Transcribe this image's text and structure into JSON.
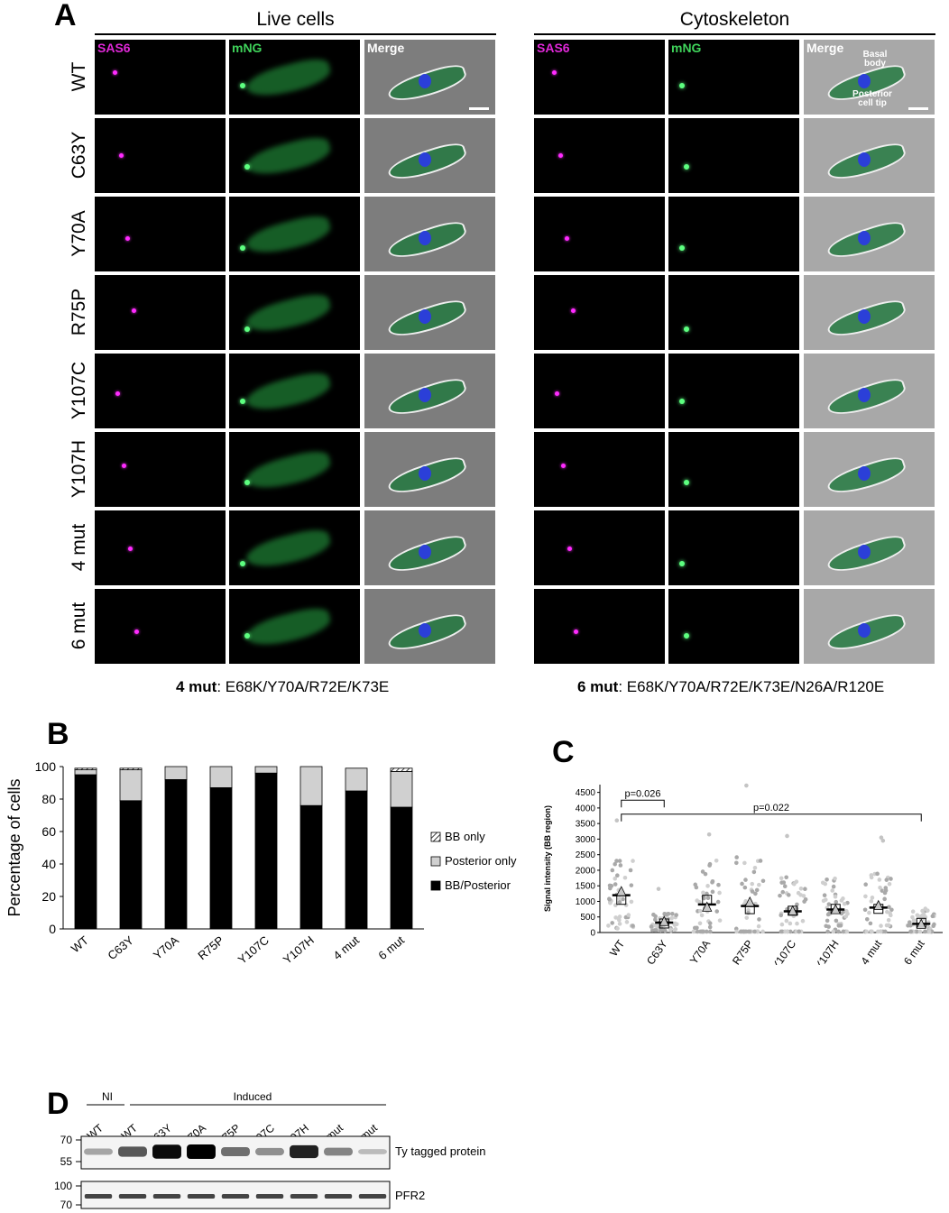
{
  "panels": {
    "A": "A",
    "B": "B",
    "C": "C",
    "D": "D"
  },
  "panel_a": {
    "live_title": "Live cells",
    "cyto_title": "Cytoskeleton",
    "channels": [
      "SAS6",
      "mNG",
      "Merge"
    ],
    "rows": [
      "WT",
      "C63Y",
      "Y70A",
      "R75P",
      "Y107C",
      "Y107H",
      "4 mut",
      "6 mut"
    ],
    "annotations": {
      "basal_body": "Basal body",
      "posterior_tip": "Posterior cell tip"
    },
    "caption_left_bold": "4 mut",
    "caption_left_text": ": E68K/Y70A/R72E/K73E",
    "caption_right_bold": "6 mut",
    "caption_right_text": ": E68K/Y70A/R72E/K73E/N26A/R120E"
  },
  "chart_data": [
    {
      "panel": "B",
      "type": "bar",
      "stacked": true,
      "categories": [
        "WT",
        "C63Y",
        "Y70A",
        "R75P",
        "Y107C",
        "Y107H",
        "4 mut",
        "6 mut"
      ],
      "series": [
        {
          "name": "BB/Posterior",
          "values": [
            95,
            79,
            92,
            87,
            96,
            76,
            85,
            75
          ],
          "color": "#000000"
        },
        {
          "name": "Posterior only",
          "values": [
            3,
            19,
            8,
            13,
            4,
            24,
            14,
            22
          ],
          "color": "#d0d0d0"
        },
        {
          "name": "BB only",
          "values": [
            1,
            1,
            0,
            0,
            0,
            0,
            0,
            2
          ],
          "color": "hatched"
        }
      ],
      "legend_order": [
        "BB only",
        "Posterior only",
        "BB/Posterior"
      ],
      "ylabel": "Percentage of cells",
      "ylim": [
        0,
        100
      ],
      "yticks": [
        0,
        20,
        40,
        60,
        80,
        100
      ],
      "legend_position": "right"
    },
    {
      "panel": "C",
      "type": "scatter",
      "categories": [
        "WT",
        "C63Y",
        "Y70A",
        "R75P",
        "Y107C",
        "Y107H",
        "4 mut",
        "6 mut"
      ],
      "ylabel": "Signal intensity (BB region)",
      "ylim": [
        0,
        4750
      ],
      "yticks": [
        0,
        500,
        1000,
        1500,
        2000,
        2500,
        3000,
        3500,
        4000,
        4500
      ],
      "means": [
        1200,
        320,
        900,
        850,
        680,
        740,
        800,
        280
      ],
      "replicate_square": [
        1050,
        290,
        1050,
        750,
        700,
        760,
        760,
        310
      ],
      "replicate_triangle": [
        1300,
        340,
        800,
        960,
        680,
        720,
        850,
        250
      ],
      "spread_max": [
        2300,
        600,
        2500,
        2750,
        2000,
        1800,
        2000,
        900
      ],
      "outliers": [
        {
          "category": "WT",
          "value": 3600
        },
        {
          "category": "Y70A",
          "value": 3150
        },
        {
          "category": "R75P",
          "value": 4720
        },
        {
          "category": "Y107C",
          "value": 3100
        },
        {
          "category": "4 mut",
          "value": 3050
        },
        {
          "category": "4 mut",
          "value": 2950
        },
        {
          "category": "C63Y",
          "value": 1400
        }
      ],
      "comparisons": [
        {
          "from": "WT",
          "to": "C63Y",
          "label": "p=0.026",
          "y": 4250
        },
        {
          "from": "WT",
          "to": "6 mut",
          "label": "p=0.022",
          "y": 3800
        }
      ]
    }
  ],
  "panel_d": {
    "group_ni": "NI",
    "group_induced": "Induced",
    "lanes": [
      "WT",
      "WT",
      "C63Y",
      "Y70A",
      "R75P",
      "Y107C",
      "Y107H",
      "4 mut",
      "6 mut"
    ],
    "band_intensity_ty": [
      0.25,
      0.6,
      0.95,
      1.0,
      0.5,
      0.35,
      0.85,
      0.4,
      0.15
    ],
    "band_intensity_pfr2": [
      0.75,
      0.75,
      0.75,
      0.75,
      0.75,
      0.75,
      0.75,
      0.75,
      0.75
    ],
    "ty_markers": [
      "70",
      "55"
    ],
    "pfr2_markers": [
      "100",
      "70"
    ],
    "ty_label": "Ty tagged protein",
    "pfr2_label": "PFR2"
  }
}
